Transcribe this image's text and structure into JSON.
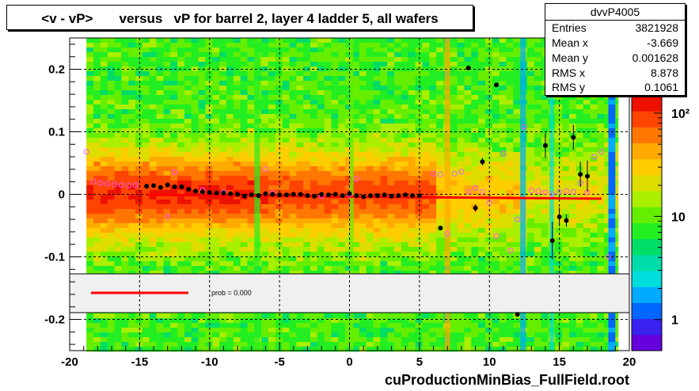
{
  "title": "<v - vP>       versus   vP for barrel 2, layer 4 ladder 5, all wafers",
  "footer": "cuProductionMinBias_FullField.root",
  "stats": {
    "name": "dvvP4005",
    "rows": [
      {
        "label": "Entries",
        "value": "3821928"
      },
      {
        "label": "Mean x",
        "value": "-3.669"
      },
      {
        "label": "Mean y",
        "value": "0.001628"
      },
      {
        "label": "RMS x",
        "value": "8.878"
      },
      {
        "label": "RMS y",
        "value": "0.1061"
      }
    ]
  },
  "colors": {
    "fit_line": "#ff0000",
    "profile_black": "#000000",
    "profile_magenta": "#ff55ff"
  },
  "chart_data": {
    "type": "heatmap",
    "title": "<v - vP>       versus   vP for barrel 2, layer 4 ladder 5, all wafers",
    "xlabel": "",
    "ylabel": "",
    "xlim": [
      -20,
      20
    ],
    "ylim": [
      -0.25,
      0.25
    ],
    "x_ticks": [
      "-20",
      "-15",
      "-10",
      "-5",
      "0",
      "5",
      "10",
      "15",
      "20"
    ],
    "y_ticks": [
      "0.2",
      "0.1",
      "0",
      "-0.1",
      "-0.2"
    ],
    "colorbar": {
      "scale": "log",
      "tick_labels": [
        "1",
        "10",
        "10²"
      ],
      "range": [
        0.5,
        150
      ]
    },
    "grid": true,
    "fit_legend": {
      "text": "prob = 0.000"
    },
    "fit_line": {
      "x": [
        -14.5,
        18.0
      ],
      "y": [
        -0.001,
        -0.007
      ]
    },
    "profile_black": {
      "x": [
        -14.5,
        -14.0,
        -13.5,
        -13.0,
        -12.5,
        -12.0,
        -11.5,
        -11.0,
        -10.5,
        -10.0,
        -9.5,
        -9.0,
        -8.5,
        -8.0,
        -7.5,
        -7.0,
        -6.5,
        -6.0,
        -5.5,
        -5.0,
        -4.5,
        -4.0,
        -3.5,
        -3.0,
        -2.5,
        -2.0,
        -1.5,
        -1.0,
        -0.5,
        0.0,
        0.5,
        1.0,
        1.5,
        2.0,
        2.5,
        3.0,
        3.5,
        4.0,
        4.5,
        5.0,
        6.5,
        8.5,
        9.0,
        9.5,
        10.5,
        12.0,
        14.0,
        14.5,
        15.0,
        15.5,
        16.0,
        16.5,
        17.0,
        17.5
      ],
      "y": [
        0.013,
        0.014,
        0.011,
        0.015,
        0.012,
        0.012,
        0.008,
        0.005,
        0.004,
        0.003,
        0.002,
        0.002,
        0.001,
        0.0,
        -0.003,
        -0.001,
        -0.002,
        0.001,
        0.0,
        -0.001,
        -0.001,
        0.0,
        0.0,
        -0.002,
        -0.003,
        0.0,
        -0.001,
        0.0,
        -0.002,
        0.001,
        -0.002,
        -0.004,
        -0.002,
        -0.002,
        -0.001,
        -0.003,
        -0.002,
        -0.001,
        -0.002,
        -0.002,
        -0.054,
        0.202,
        -0.022,
        0.052,
        0.175,
        -0.192,
        0.078,
        -0.074,
        -0.036,
        -0.042,
        0.091,
        0.032,
        0.029,
        0.163
      ],
      "yerr": [
        0.002,
        0.002,
        0.002,
        0.002,
        0.002,
        0.002,
        0.002,
        0.002,
        0.002,
        0.002,
        0.002,
        0.002,
        0.002,
        0.002,
        0.002,
        0.002,
        0.002,
        0.002,
        0.002,
        0.002,
        0.002,
        0.002,
        0.002,
        0.002,
        0.002,
        0.002,
        0.002,
        0.002,
        0.002,
        0.002,
        0.002,
        0.002,
        0.002,
        0.002,
        0.002,
        0.002,
        0.002,
        0.002,
        0.002,
        0.002,
        0.003,
        0.003,
        0.006,
        0.006,
        0.003,
        0.003,
        0.02,
        0.03,
        0.015,
        0.01,
        0.02,
        0.02,
        0.025,
        0.005
      ]
    },
    "profile_magenta": {
      "x": [
        -18.8,
        -18.3,
        -17.8,
        -17.3,
        -16.8,
        -16.3,
        -15.8,
        -15.3,
        -13.0,
        -12.5,
        -10.5,
        -9.0,
        -6.0,
        -5.5,
        -2.0,
        0.0,
        0.5,
        6.0,
        6.5,
        7.0,
        7.5,
        8.0,
        8.5,
        9.0,
        9.5,
        10.0,
        10.5,
        11.0,
        11.5,
        12.0,
        12.5,
        13.0,
        13.5,
        14.0,
        14.5,
        15.0,
        15.5,
        16.0,
        16.5,
        17.0,
        17.5,
        18.0,
        18.5
      ],
      "y": [
        0.068,
        0.02,
        0.018,
        0.017,
        0.016,
        0.015,
        0.014,
        0.015,
        -0.036,
        0.035,
        0.007,
        0.003,
        0.04,
        0.002,
        -0.003,
        0.0,
        0.025,
        0.033,
        0.032,
        -0.063,
        0.033,
        0.036,
        0.004,
        0.01,
        0.004,
        -0.013,
        -0.067,
        0.065,
        -0.09,
        -0.04,
        0.108,
        0.006,
        0.005,
        0.003,
        0.0,
        0.004,
        0.005,
        0.004,
        0.018,
        0.003,
        0.06,
        0.068,
        -0.1
      ]
    }
  }
}
